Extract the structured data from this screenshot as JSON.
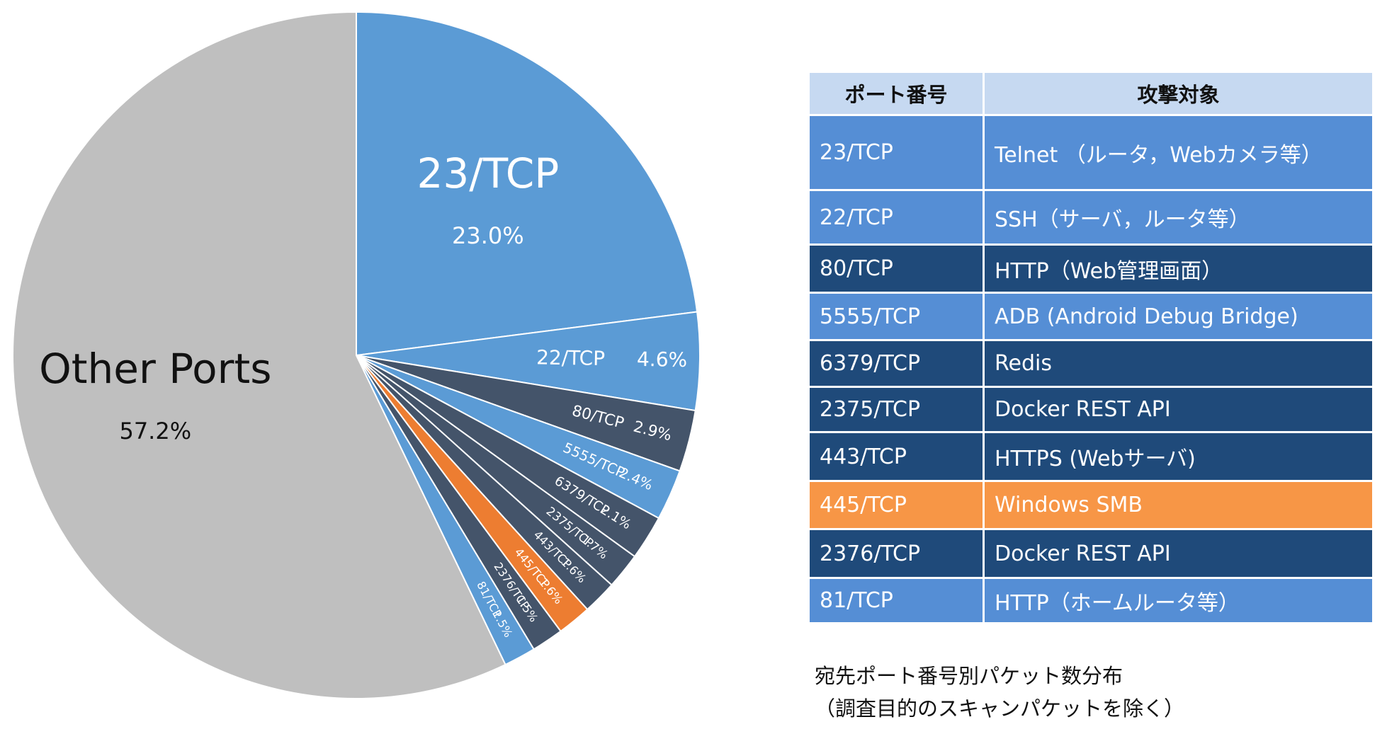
{
  "chart_data": {
    "type": "pie",
    "categories": [
      "23/TCP",
      "22/TCP",
      "80/TCP",
      "5555/TCP",
      "6379/TCP",
      "2375/TCP",
      "443/TCP",
      "445/TCP",
      "2376/TCP",
      "81/TCP",
      "Other Ports"
    ],
    "values": [
      23.0,
      4.6,
      2.9,
      2.4,
      2.1,
      1.7,
      1.6,
      1.6,
      1.5,
      1.5,
      57.2
    ],
    "value_labels": [
      "23.0%",
      "4.6%",
      "2.9%",
      "2.4%",
      "2.1%",
      "1.7%",
      "1.6%",
      "1.6%",
      "1.5%",
      "1.5%",
      "57.2%"
    ],
    "colors": [
      "#5b9bd5",
      "#5b9bd5",
      "#44546a",
      "#5b9bd5",
      "#44546a",
      "#44546a",
      "#44546a",
      "#ed7d31",
      "#44546a",
      "#5b9bd5",
      "#bfbfbf"
    ]
  },
  "table": {
    "header": [
      "ポート番号",
      "攻撃対象"
    ],
    "header_color": "#c6d9f1",
    "rows": [
      {
        "port": "23/TCP",
        "target": "Telnet （ルータ，Webカメラ等）",
        "color": "#558ed5"
      },
      {
        "port": "22/TCP",
        "target": "SSH（サーバ，ルータ等）",
        "color": "#558ed5"
      },
      {
        "port": "80/TCP",
        "target": "HTTP（Web管理画面）",
        "color": "#1f4a7a"
      },
      {
        "port": "5555/TCP",
        "target": "ADB (Android Debug Bridge)",
        "color": "#558ed5"
      },
      {
        "port": "6379/TCP",
        "target": "Redis",
        "color": "#1f4a7a"
      },
      {
        "port": "2375/TCP",
        "target": "Docker REST API",
        "color": "#1f4a7a"
      },
      {
        "port": "443/TCP",
        "target": "HTTPS (Webサーバ)",
        "color": "#1f4a7a"
      },
      {
        "port": "445/TCP",
        "target": "Windows SMB",
        "color": "#f79646"
      },
      {
        "port": "2376/TCP",
        "target": "Docker REST API",
        "color": "#1f4a7a"
      },
      {
        "port": "81/TCP",
        "target": "HTTP（ホームルータ等）",
        "color": "#558ed5"
      }
    ]
  },
  "caption": [
    "宛先ポート番号別パケット数分布",
    "（調査目的のスキャンパケットを除く）"
  ]
}
